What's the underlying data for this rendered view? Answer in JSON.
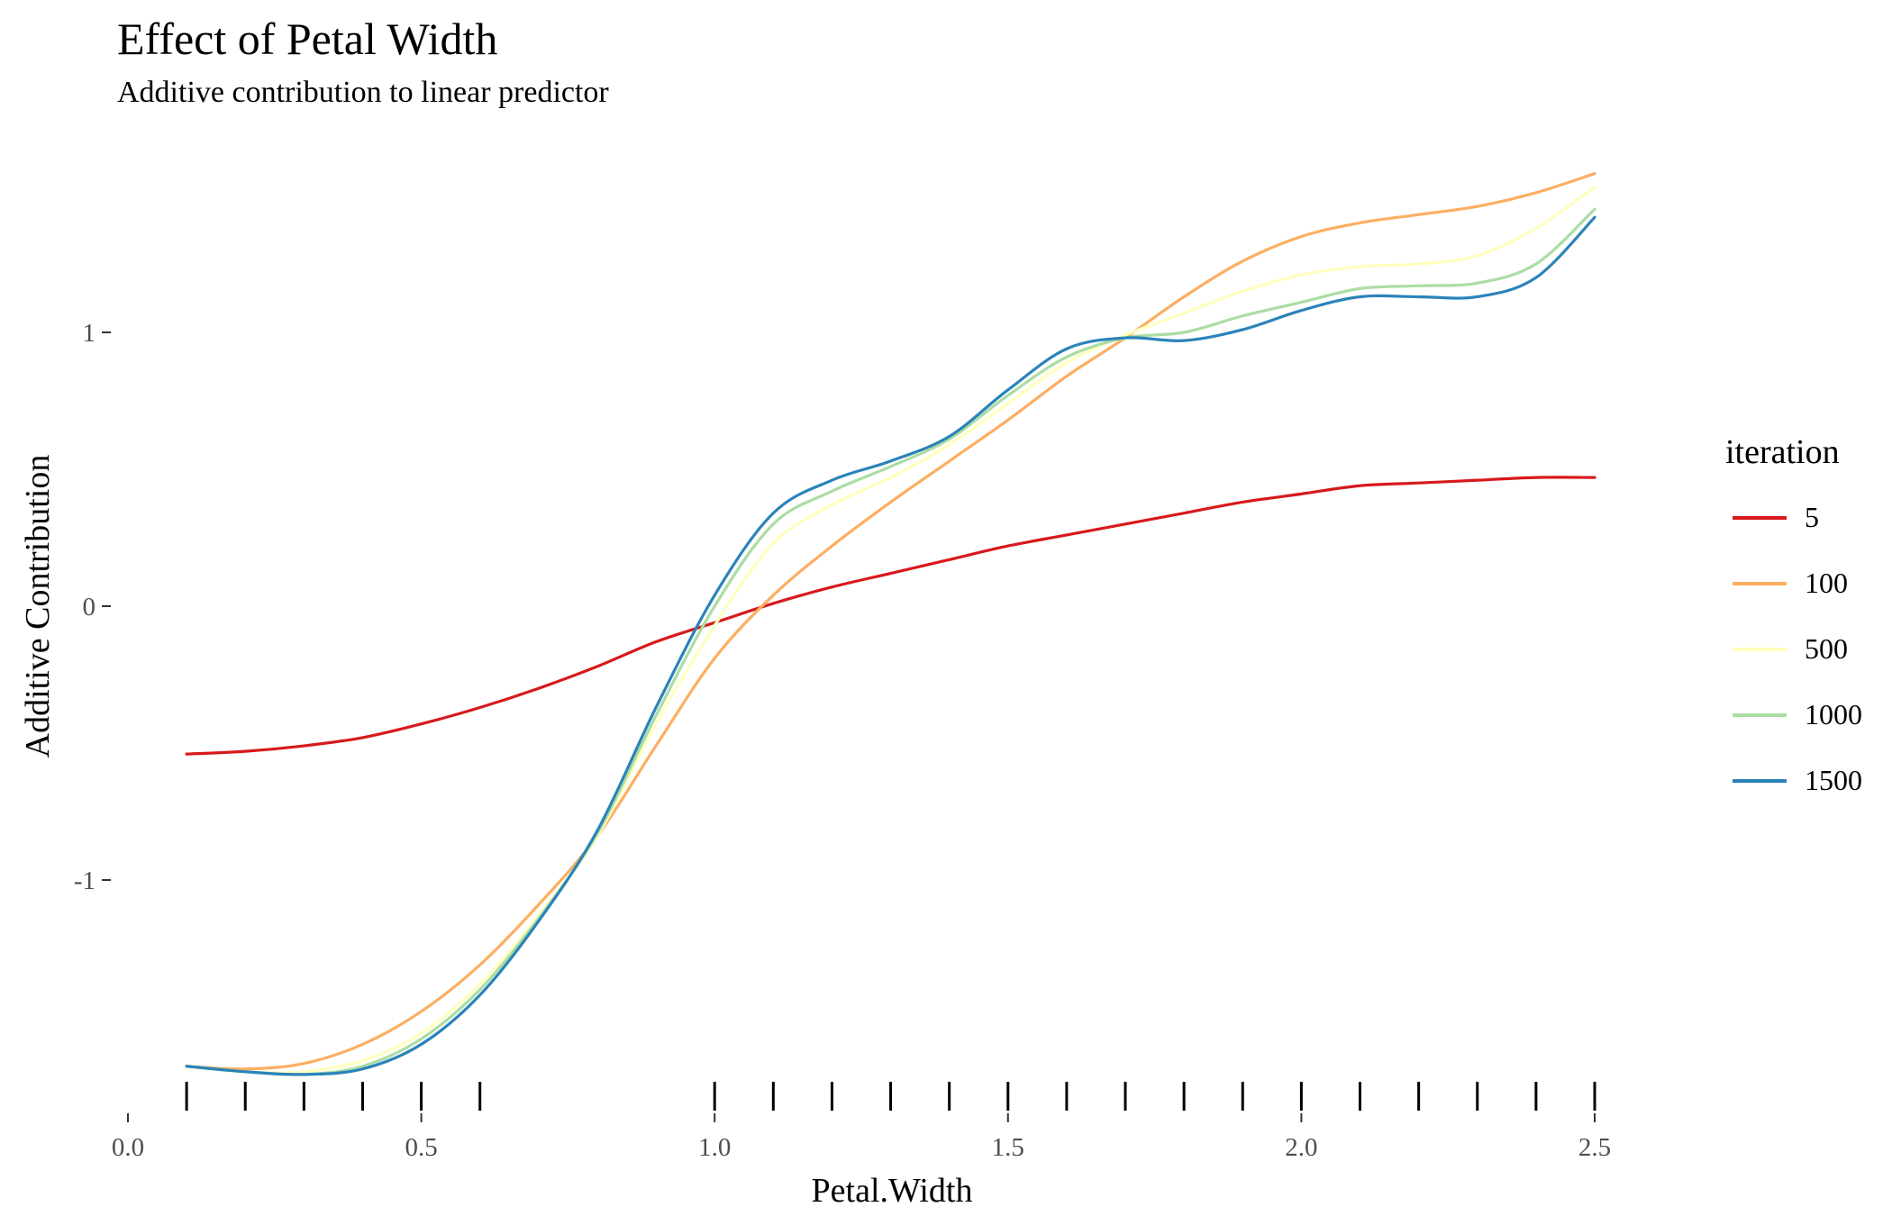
{
  "chart_data": {
    "type": "line",
    "title": "Effect of Petal Width",
    "subtitle": "Additive contribution to linear predictor",
    "xlabel": "Petal.Width",
    "ylabel": "Additive Contribution",
    "xlim": [
      0.0,
      2.5
    ],
    "ylim": [
      -1.75,
      1.6
    ],
    "x_ticks": [
      "0.0",
      "0.5",
      "1.0",
      "1.5",
      "2.0",
      "2.5"
    ],
    "y_ticks": [
      "-1",
      "0",
      "1"
    ],
    "rug_x": [
      0.1,
      0.2,
      0.3,
      0.4,
      0.5,
      0.6,
      1.0,
      1.1,
      1.2,
      1.3,
      1.4,
      1.5,
      1.6,
      1.7,
      1.8,
      1.9,
      2.0,
      2.1,
      2.2,
      2.3,
      2.4,
      2.5
    ],
    "grid": false,
    "legend": {
      "title": "iteration",
      "position": "right"
    },
    "x": [
      0.1,
      0.2,
      0.3,
      0.4,
      0.5,
      0.6,
      0.7,
      0.8,
      0.9,
      1.0,
      1.1,
      1.2,
      1.3,
      1.4,
      1.5,
      1.6,
      1.7,
      1.8,
      1.9,
      2.0,
      2.1,
      2.2,
      2.3,
      2.4,
      2.5
    ],
    "series": [
      {
        "name": "5",
        "color": "#d7191c",
        "values": [
          -0.54,
          -0.53,
          -0.51,
          -0.48,
          -0.43,
          -0.37,
          -0.3,
          -0.22,
          -0.13,
          -0.06,
          0.01,
          0.07,
          0.12,
          0.17,
          0.22,
          0.26,
          0.3,
          0.34,
          0.38,
          0.41,
          0.44,
          0.45,
          0.46,
          0.47,
          0.47
        ]
      },
      {
        "name": "100",
        "color": "#fdae61",
        "values": [
          -1.68,
          -1.69,
          -1.67,
          -1.6,
          -1.48,
          -1.31,
          -1.09,
          -0.84,
          -0.51,
          -0.19,
          0.04,
          0.22,
          0.38,
          0.53,
          0.68,
          0.84,
          0.98,
          1.13,
          1.26,
          1.35,
          1.4,
          1.43,
          1.46,
          1.51,
          1.58
        ]
      },
      {
        "name": "500",
        "color": "#ffffbf",
        "values": [
          -1.68,
          -1.7,
          -1.7,
          -1.66,
          -1.56,
          -1.38,
          -1.13,
          -0.84,
          -0.43,
          -0.07,
          0.23,
          0.37,
          0.47,
          0.59,
          0.74,
          0.89,
          0.99,
          1.07,
          1.15,
          1.21,
          1.24,
          1.25,
          1.28,
          1.38,
          1.53
        ]
      },
      {
        "name": "1000",
        "color": "#abdda4",
        "values": [
          -1.68,
          -1.7,
          -1.71,
          -1.68,
          -1.58,
          -1.4,
          -1.14,
          -0.83,
          -0.4,
          0.0,
          0.3,
          0.42,
          0.51,
          0.61,
          0.77,
          0.91,
          0.98,
          1.0,
          1.06,
          1.11,
          1.16,
          1.17,
          1.18,
          1.25,
          1.45
        ]
      },
      {
        "name": "1500",
        "color": "#2b83ba",
        "values": [
          -1.68,
          -1.7,
          -1.71,
          -1.69,
          -1.6,
          -1.42,
          -1.15,
          -0.82,
          -0.37,
          0.04,
          0.34,
          0.46,
          0.53,
          0.62,
          0.79,
          0.94,
          0.98,
          0.97,
          1.01,
          1.08,
          1.13,
          1.13,
          1.13,
          1.2,
          1.42
        ]
      }
    ]
  }
}
